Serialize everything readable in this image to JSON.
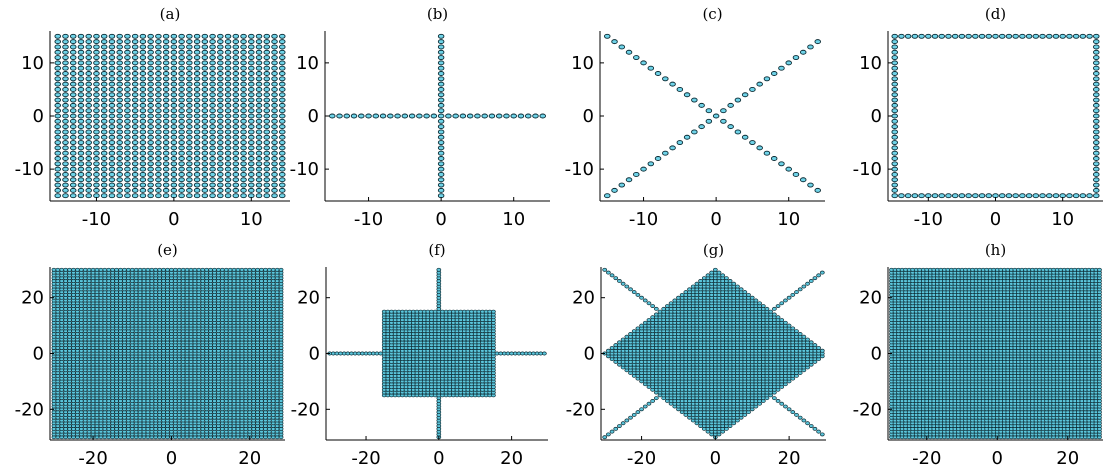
{
  "colors": {
    "marker_fill": "#6fd3e8",
    "marker_edge": "#0a2a33",
    "axis": "#000000"
  },
  "chart_data": [
    {
      "panel": "(a)",
      "type": "scatter",
      "title": "(a)",
      "shape": "full square grid",
      "x": {
        "min": -15,
        "max": 14,
        "step": 1
      },
      "y": {
        "min": -15,
        "max": 15,
        "step": 1
      },
      "xlim": [
        -16,
        15
      ],
      "ylim": [
        -16,
        16
      ],
      "xticks": [
        -10,
        0,
        10
      ],
      "yticks": [
        -10,
        0,
        10
      ],
      "xticklabels": [
        "-10",
        "0",
        "10"
      ],
      "yticklabels": [
        "-10",
        "0",
        "10"
      ]
    },
    {
      "panel": "(b)",
      "type": "scatter",
      "title": "(b)",
      "shape": "cross (points on x=0 and y=0)",
      "x": {
        "min": -15,
        "max": 14,
        "step": 1
      },
      "y": {
        "min": -15,
        "max": 15,
        "step": 1
      },
      "xlim": [
        -16,
        15
      ],
      "ylim": [
        -16,
        16
      ],
      "xticks": [
        -10,
        0,
        10
      ],
      "yticks": [
        -10,
        0,
        10
      ],
      "xticklabels": [
        "-10",
        "0",
        "10"
      ],
      "yticklabels": [
        "-10",
        "0",
        "10"
      ]
    },
    {
      "panel": "(c)",
      "type": "scatter",
      "title": "(c)",
      "shape": "diagonals (points on y=x and y=-x)",
      "x": {
        "min": -15,
        "max": 14,
        "step": 1
      },
      "y": {
        "min": -15,
        "max": 15,
        "step": 1
      },
      "xlim": [
        -16,
        15
      ],
      "ylim": [
        -16,
        16
      ],
      "xticks": [
        -10,
        0,
        10
      ],
      "yticks": [
        -10,
        0,
        10
      ],
      "xticklabels": [
        "-10",
        "0",
        "10"
      ],
      "yticklabels": [
        "-10",
        "0",
        "10"
      ]
    },
    {
      "panel": "(d)",
      "type": "scatter",
      "title": "(d)",
      "shape": "square boundary",
      "x": {
        "min": -15,
        "max": 15,
        "step": 1
      },
      "y": {
        "min": -15,
        "max": 15,
        "step": 1
      },
      "xlim": [
        -16,
        16
      ],
      "ylim": [
        -16,
        16
      ],
      "xticks": [
        -10,
        0,
        10
      ],
      "yticks": [
        -10,
        0,
        10
      ],
      "xticklabels": [
        "-10",
        "0",
        "10"
      ],
      "yticklabels": [
        "-10",
        "0",
        "10"
      ]
    },
    {
      "panel": "(e)",
      "type": "scatter",
      "title": "(e)",
      "shape": "full square grid",
      "x": {
        "min": -30,
        "max": 28,
        "step": 1
      },
      "y": {
        "min": -30,
        "max": 30,
        "step": 1
      },
      "xlim": [
        -31,
        29
      ],
      "ylim": [
        -31,
        31
      ],
      "xticks": [
        -20,
        0,
        20
      ],
      "yticks": [
        -20,
        0,
        20
      ],
      "xticklabels": [
        "-20",
        "0",
        "20"
      ],
      "yticklabels": [
        "-20",
        "0",
        "20"
      ]
    },
    {
      "panel": "(f)",
      "type": "scatter",
      "title": "(f)",
      "shape": "central square |x|<=15,|y|<=15 plus cross arms on axes",
      "x": {
        "min": -30,
        "max": 29,
        "step": 1
      },
      "y": {
        "min": -30,
        "max": 30,
        "step": 1
      },
      "xlim": [
        -31,
        30
      ],
      "ylim": [
        -31,
        31
      ],
      "xticks": [
        -20,
        0,
        20
      ],
      "yticks": [
        -20,
        0,
        20
      ],
      "xticklabels": [
        "-20",
        "0",
        "20"
      ],
      "yticklabels": [
        "-20",
        "0",
        "20"
      ]
    },
    {
      "panel": "(g)",
      "type": "scatter",
      "title": "(g)",
      "shape": "diamond |x|+|y|<=30 plus diagonal arms",
      "x": {
        "min": -30,
        "max": 29,
        "step": 1
      },
      "y": {
        "min": -30,
        "max": 30,
        "step": 1
      },
      "xlim": [
        -31,
        30
      ],
      "ylim": [
        -31,
        31
      ],
      "xticks": [
        -20,
        0,
        20
      ],
      "yticks": [
        -20,
        0,
        20
      ],
      "xticklabels": [
        "-20",
        "0",
        "20"
      ],
      "yticklabels": [
        "-20",
        "0",
        "20"
      ]
    },
    {
      "panel": "(h)",
      "type": "scatter",
      "title": "(h)",
      "shape": "full square grid",
      "x": {
        "min": -30,
        "max": 29,
        "step": 1
      },
      "y": {
        "min": -30,
        "max": 30,
        "step": 1
      },
      "xlim": [
        -31,
        30
      ],
      "ylim": [
        -31,
        31
      ],
      "xticks": [
        -20,
        0,
        20
      ],
      "yticks": [
        -20,
        0,
        20
      ],
      "xticklabels": [
        "-20",
        "0",
        "20"
      ],
      "yticklabels": [
        "-20",
        "0",
        "20"
      ]
    }
  ]
}
